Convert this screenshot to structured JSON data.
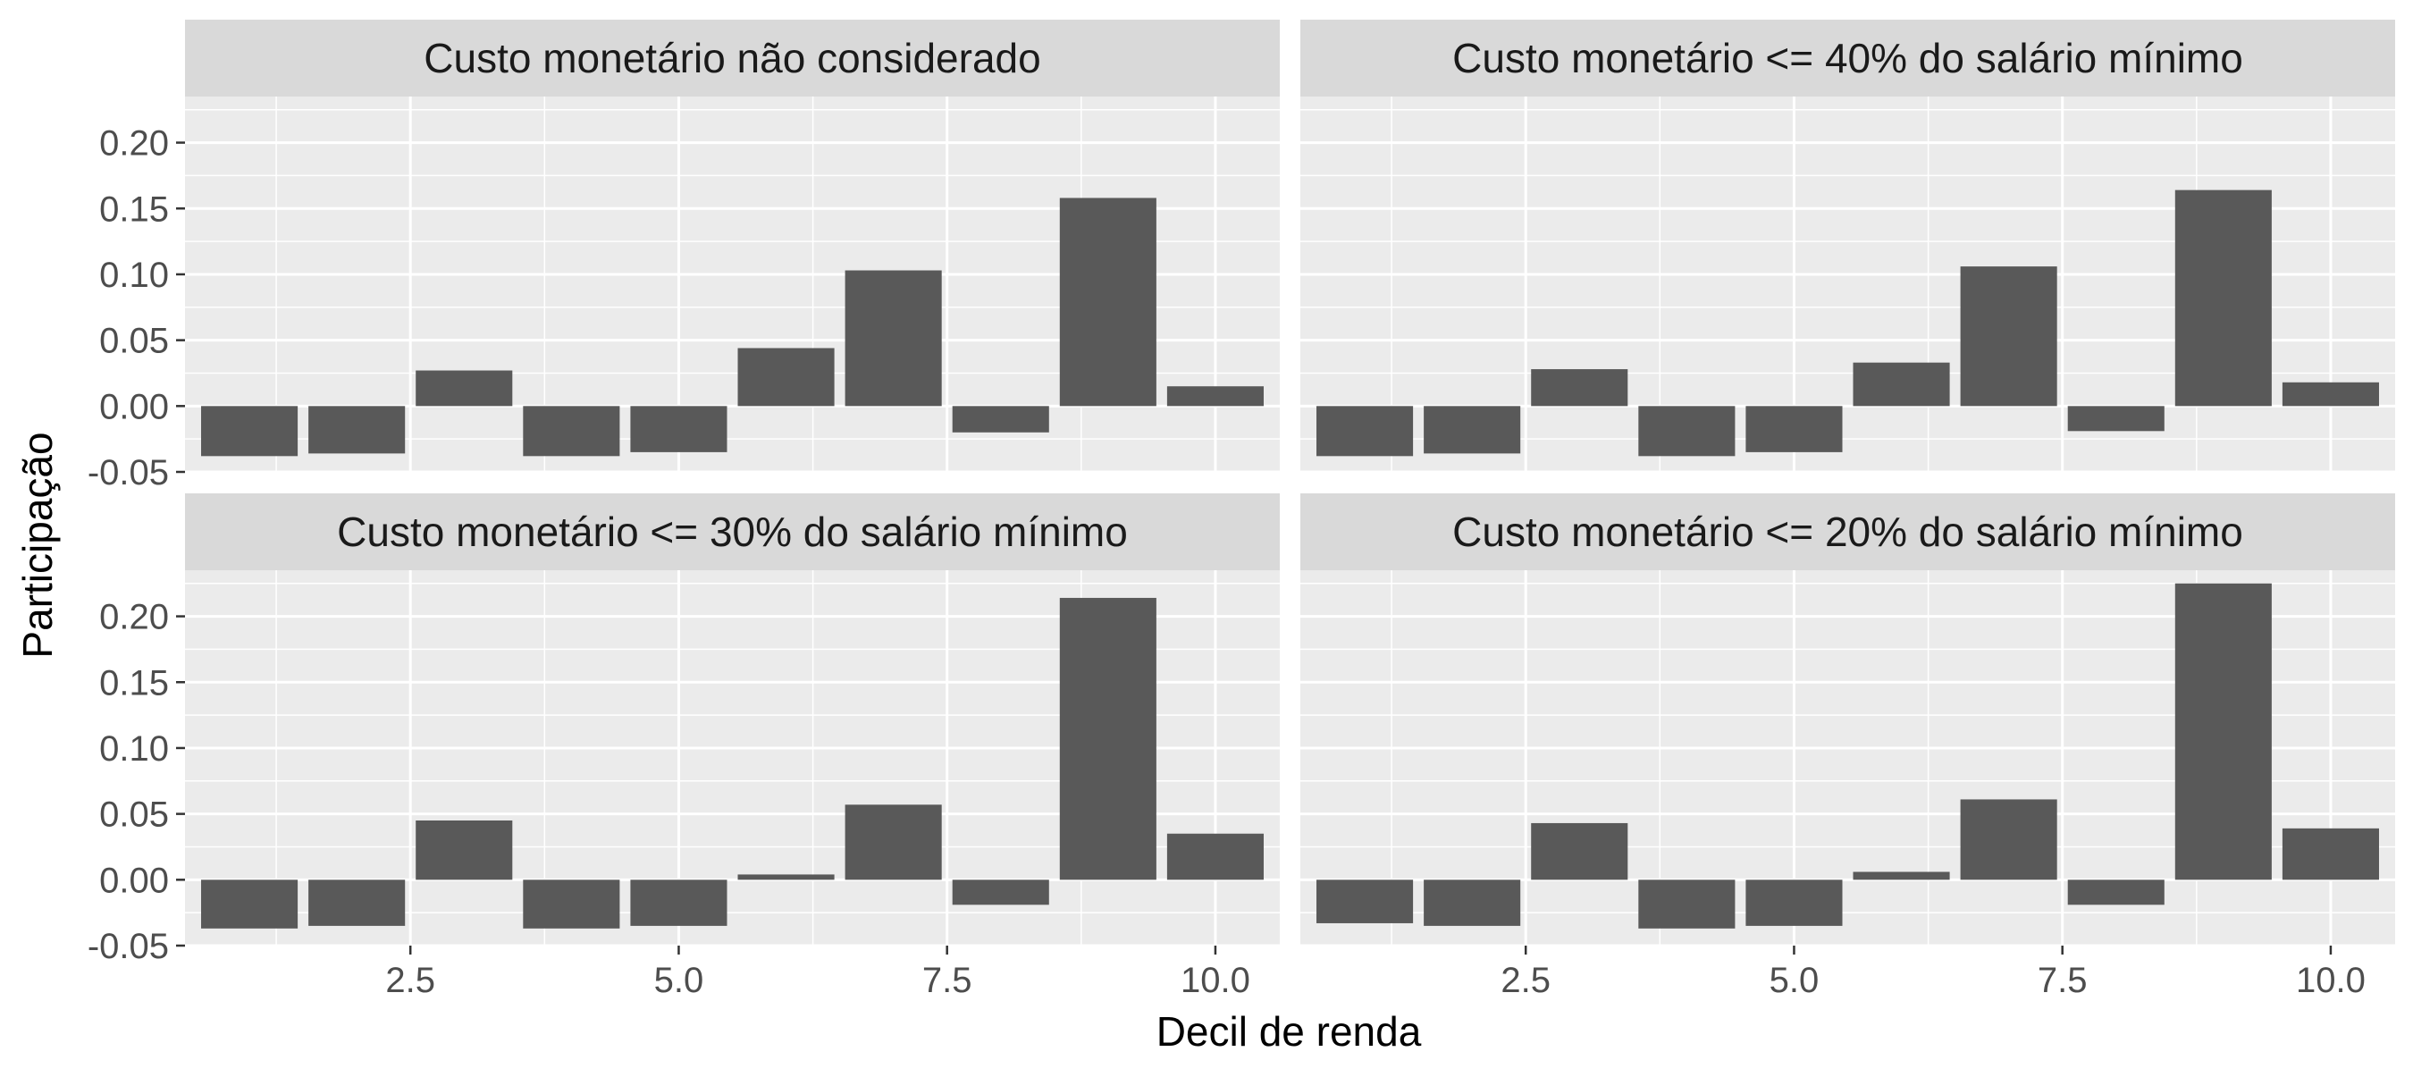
{
  "chart_data": {
    "type": "bar",
    "xlabel": "Decil de renda",
    "ylabel": "Participação",
    "x": [
      1,
      2,
      3,
      4,
      5,
      6,
      7,
      8,
      9,
      10
    ],
    "xlim": [
      0.4,
      10.6
    ],
    "ylim": [
      -0.05,
      0.235
    ],
    "x_ticks": [
      2.5,
      5.0,
      7.5,
      10.0
    ],
    "x_tick_labels": [
      "2.5",
      "5.0",
      "7.5",
      "10.0"
    ],
    "y_ticks": [
      -0.05,
      0.0,
      0.05,
      0.1,
      0.15,
      0.2
    ],
    "y_tick_labels": [
      "-0.05",
      "0.00",
      "0.05",
      "0.10",
      "0.15",
      "0.20"
    ],
    "grid": true,
    "bar_color": "#595959",
    "panel_background": "#ebebeb",
    "strip_background": "#d9d9d9",
    "facets": [
      {
        "title": "Custo monetário não considerado",
        "values": [
          -0.038,
          -0.036,
          0.027,
          -0.038,
          -0.035,
          0.044,
          0.103,
          -0.02,
          0.158,
          0.015
        ]
      },
      {
        "title": "Custo monetário <= 40% do salário mínimo",
        "values": [
          -0.038,
          -0.036,
          0.028,
          -0.038,
          -0.035,
          0.033,
          0.106,
          -0.019,
          0.164,
          0.018
        ]
      },
      {
        "title": "Custo monetário <= 30% do salário mínimo",
        "values": [
          -0.037,
          -0.035,
          0.045,
          -0.037,
          -0.035,
          0.004,
          0.057,
          -0.019,
          0.214,
          0.035
        ]
      },
      {
        "title": "Custo monetário <= 20% do salário mínimo",
        "values": [
          -0.033,
          -0.035,
          0.043,
          -0.037,
          -0.035,
          0.006,
          0.061,
          -0.019,
          0.225,
          0.039
        ]
      }
    ]
  }
}
